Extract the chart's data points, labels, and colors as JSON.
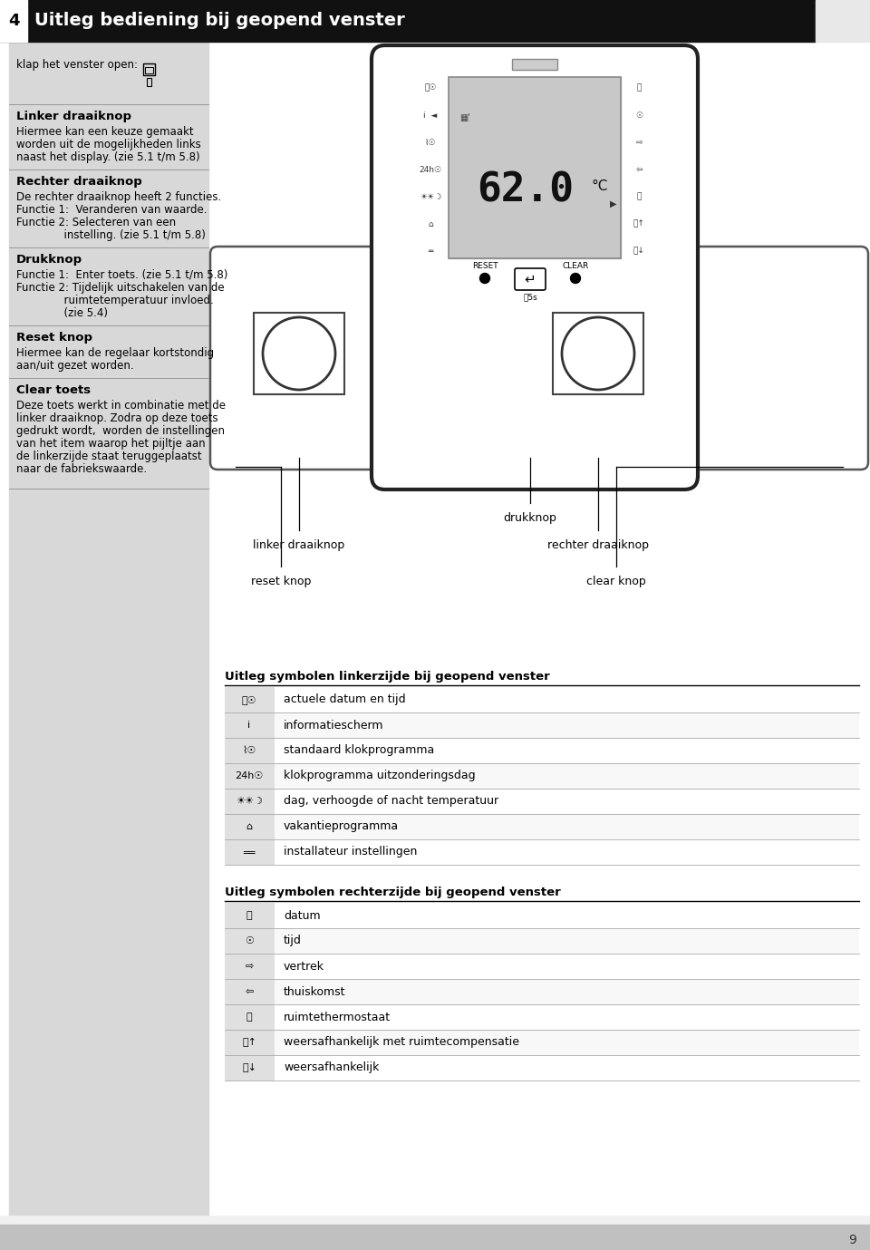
{
  "title": "Uitleg bediening bij geopend venster",
  "chapter_num": "4",
  "page_num": "9",
  "bg_color": "#f0f0f0",
  "header_bg": "#111111",
  "header_text_color": "#ffffff",
  "left_panel_bg": "#d8d8d8",
  "symbols_left_title": "Uitleg symbolen linkerzijde bij geopend venster",
  "symbols_left": [
    {
      "text": "actuele datum en tijd"
    },
    {
      "text": "informatiescherm"
    },
    {
      "text": "standaard klokprogramma"
    },
    {
      "text": "klokprogramma uitzonderingsdag"
    },
    {
      "text": "dag, verhoogde of nacht temperatuur"
    },
    {
      "text": "vakantieprogramma"
    },
    {
      "text": "installateur instellingen"
    }
  ],
  "symbols_right_title": "Uitleg symbolen rechterzijde bij geopend venster",
  "symbols_right": [
    {
      "text": "datum"
    },
    {
      "text": "tijd"
    },
    {
      "text": "vertrek"
    },
    {
      "text": "thuiskomst"
    },
    {
      "text": "ruimtethermostaat"
    },
    {
      "text": "weersafhankelijk met ruimtecompensatie"
    },
    {
      "text": "weersafhankelijk"
    }
  ],
  "label_drukknop": "drukknop",
  "label_linker": "linker draaiknop",
  "label_rechter": "rechter draaiknop",
  "label_reset": "reset knop",
  "label_clear": "clear knop"
}
